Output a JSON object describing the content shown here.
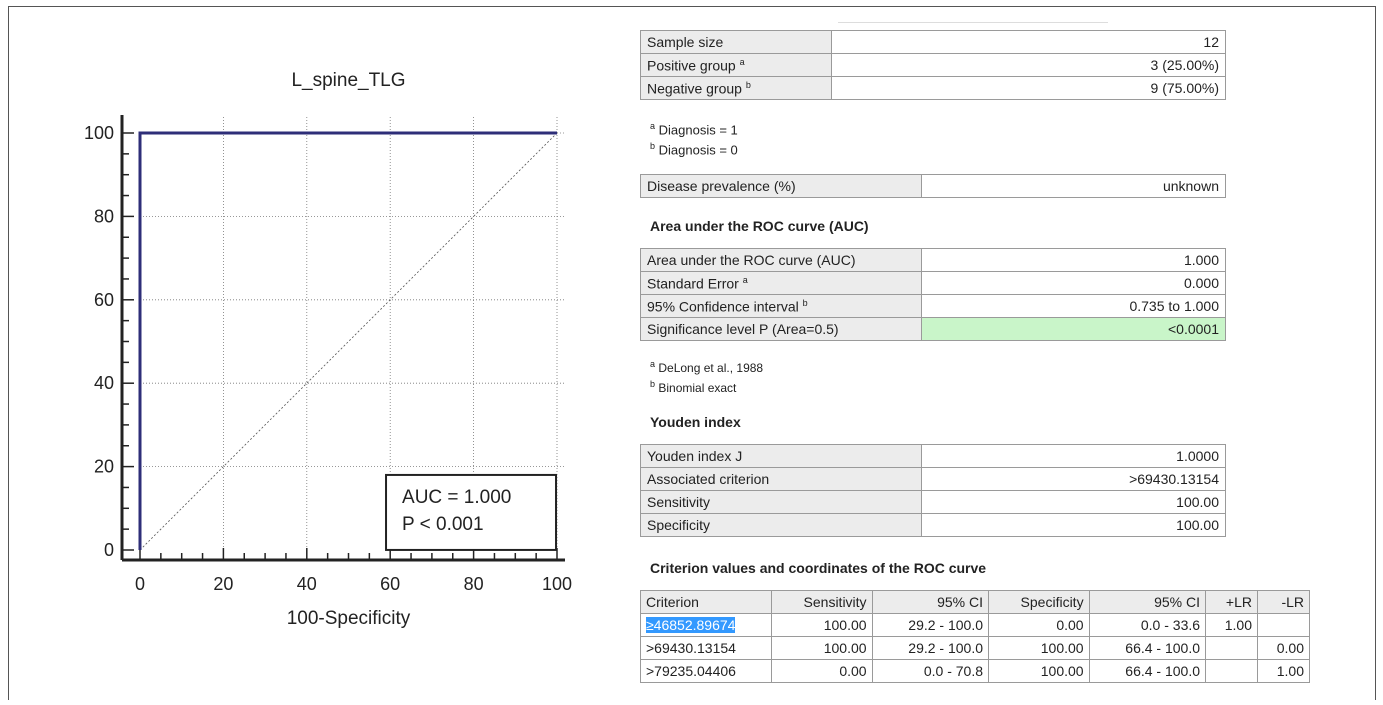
{
  "chart_data": {
    "type": "line",
    "title": "L_spine_TLG",
    "xlabel": "100-Specificity",
    "ylabel": "",
    "xlim": [
      0,
      100
    ],
    "ylim": [
      0,
      100
    ],
    "xticks": [
      "0",
      "20",
      "40",
      "60",
      "80",
      "100"
    ],
    "yticks": [
      "0",
      "20",
      "40",
      "60",
      "80",
      "100"
    ],
    "grid": true,
    "series": [
      {
        "x": [
          0,
          0,
          100
        ],
        "y": [
          0,
          100,
          100
        ],
        "color": "#2e2e78"
      }
    ],
    "reference_line": {
      "x": [
        0,
        100
      ],
      "y": [
        0,
        100
      ]
    },
    "annotation": [
      "AUC = 1.000",
      "P < 0.001"
    ]
  },
  "summary": {
    "rows": [
      {
        "label": "Sample size",
        "sup": "",
        "value": "12"
      },
      {
        "label": "Positive group",
        "sup": "a",
        "value": "3 (25.00%)"
      },
      {
        "label": "Negative group",
        "sup": "b",
        "value": "9 (75.00%)"
      }
    ],
    "notes": [
      {
        "sup": "a",
        "text": " Diagnosis = 1"
      },
      {
        "sup": "b",
        "text": " Diagnosis = 0"
      }
    ]
  },
  "prevalence": {
    "label": "Disease prevalence (%)",
    "value": "unknown"
  },
  "auc": {
    "heading": "Area under the ROC curve (AUC)",
    "rows": [
      {
        "label": "Area under the ROC curve (AUC)",
        "sup": "",
        "value": "1.000"
      },
      {
        "label": "Standard Error",
        "sup": "a",
        "value": "0.000"
      },
      {
        "label": "95% Confidence interval",
        "sup": "b",
        "value": "0.735 to 1.000"
      },
      {
        "label": "Significance level P (Area=0.5)",
        "sup": "",
        "value": "<0.0001"
      }
    ],
    "notes": [
      {
        "sup": "a",
        "text": " DeLong et al., 1988"
      },
      {
        "sup": "b",
        "text": " Binomial exact"
      }
    ]
  },
  "youden": {
    "heading": "Youden index",
    "rows": [
      {
        "label": "Youden index J",
        "value": "1.0000"
      },
      {
        "label": "Associated criterion",
        "value": ">69430.13154"
      },
      {
        "label": "Sensitivity",
        "value": "100.00"
      },
      {
        "label": "Specificity",
        "value": "100.00"
      }
    ]
  },
  "criterion": {
    "heading": "Criterion values and coordinates of the ROC curve",
    "columns": [
      "Criterion",
      "Sensitivity",
      "95% CI",
      "Specificity",
      "95% CI",
      "+LR",
      "-LR"
    ],
    "rows": [
      [
        "≥46852.89674",
        "100.00",
        "29.2 - 100.0",
        "0.00",
        "0.0 - 33.6",
        "1.00",
        ""
      ],
      [
        ">69430.13154",
        "100.00",
        "29.2 - 100.0",
        "100.00",
        "66.4 - 100.0",
        "",
        "0.00"
      ],
      [
        ">79235.04406",
        "0.00",
        "0.0 - 70.8",
        "100.00",
        "66.4 - 100.0",
        "",
        "1.00"
      ]
    ]
  }
}
